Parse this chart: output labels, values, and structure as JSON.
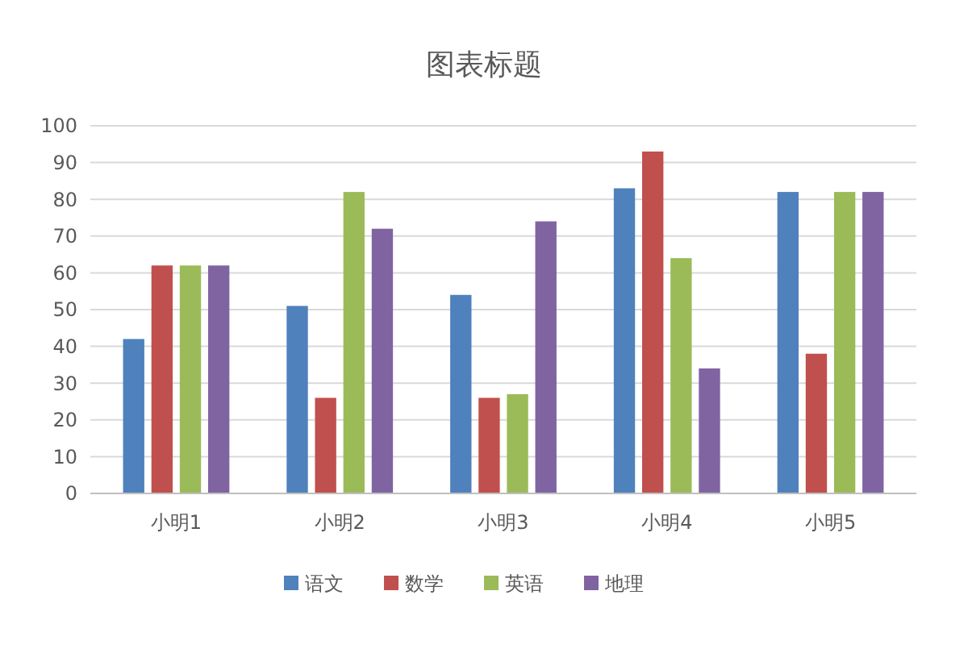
{
  "chart_data": {
    "type": "bar",
    "title": "图表标题",
    "categories": [
      "小明1",
      "小明2",
      "小明3",
      "小明4",
      "小明5"
    ],
    "series": [
      {
        "name": "语文",
        "color": "#4f81bd",
        "values": [
          42,
          51,
          54,
          83,
          82
        ]
      },
      {
        "name": "数学",
        "color": "#c0504d",
        "values": [
          62,
          26,
          26,
          93,
          38
        ]
      },
      {
        "name": "英语",
        "color": "#9bbb59",
        "values": [
          62,
          82,
          27,
          64,
          82
        ]
      },
      {
        "name": "地理",
        "color": "#8064a2",
        "values": [
          62,
          72,
          74,
          34,
          82
        ]
      }
    ],
    "ylim": [
      0,
      100
    ],
    "yticks": [
      0,
      10,
      20,
      30,
      40,
      50,
      60,
      70,
      80,
      90,
      100
    ],
    "grid": "y",
    "legend": "bottom"
  }
}
